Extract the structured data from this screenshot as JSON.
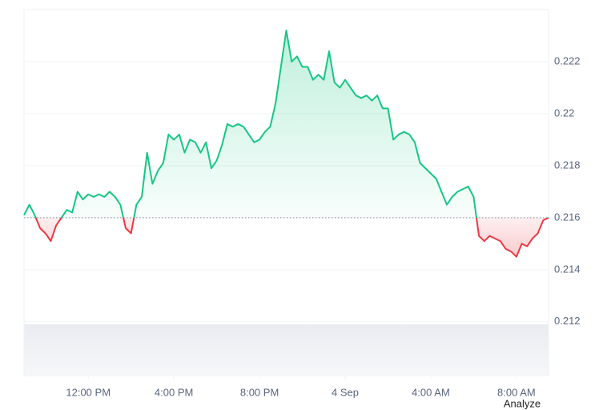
{
  "chart_data": {
    "type": "line",
    "x": [
      -3,
      -2.75,
      -2.5,
      -2.25,
      -2,
      -1.75,
      -1.5,
      -1.25,
      -1,
      -0.75,
      -0.5,
      -0.25,
      0,
      0.25,
      0.5,
      0.75,
      1,
      1.25,
      1.5,
      1.75,
      2,
      2.25,
      2.5,
      2.75,
      3,
      3.25,
      3.5,
      3.75,
      4,
      4.25,
      4.5,
      4.75,
      5,
      5.25,
      5.5,
      5.75,
      6,
      6.25,
      6.5,
      6.75,
      7,
      7.25,
      7.5,
      7.75,
      8,
      8.25,
      8.5,
      8.75,
      9,
      9.25,
      9.5,
      9.75,
      10,
      10.25,
      10.5,
      10.75,
      11,
      11.25,
      11.5,
      11.75,
      12,
      12.25,
      12.5,
      12.75,
      13,
      13.25,
      13.5,
      13.75,
      14,
      14.25,
      14.5,
      14.75,
      15,
      15.25,
      15.5,
      15.75,
      16,
      16.25,
      16.5,
      16.75,
      17,
      17.25,
      17.5,
      17.75,
      18,
      18.25,
      18.5,
      18.75,
      19,
      19.25,
      19.5,
      19.75,
      20,
      20.25,
      20.5,
      20.75,
      21,
      21.25,
      21.5
    ],
    "values": [
      0.2161,
      0.2165,
      0.2161,
      0.2156,
      0.2154,
      0.2151,
      0.2157,
      0.216,
      0.2163,
      0.2162,
      0.217,
      0.2167,
      0.2169,
      0.2168,
      0.2169,
      0.2168,
      0.217,
      0.2168,
      0.2165,
      0.2156,
      0.2154,
      0.2165,
      0.2168,
      0.2185,
      0.2173,
      0.2178,
      0.2181,
      0.2192,
      0.219,
      0.2192,
      0.2185,
      0.219,
      0.2189,
      0.2185,
      0.2189,
      0.2179,
      0.2182,
      0.2188,
      0.2196,
      0.2195,
      0.2196,
      0.2195,
      0.2192,
      0.2189,
      0.219,
      0.2193,
      0.2195,
      0.2204,
      0.2218,
      0.2232,
      0.222,
      0.2222,
      0.2218,
      0.2218,
      0.2213,
      0.2215,
      0.2213,
      0.2224,
      0.2212,
      0.221,
      0.2213,
      0.221,
      0.2207,
      0.2206,
      0.2207,
      0.2205,
      0.2207,
      0.2202,
      0.2202,
      0.219,
      0.2192,
      0.2193,
      0.2192,
      0.2189,
      0.2181,
      0.2179,
      0.2177,
      0.2175,
      0.217,
      0.2165,
      0.2168,
      0.217,
      0.2171,
      0.2172,
      0.2168,
      0.2153,
      0.2151,
      0.2153,
      0.2152,
      0.2151,
      0.2148,
      0.2147,
      0.2145,
      0.215,
      0.2149,
      0.2152,
      0.2154,
      0.2159,
      0.216
    ],
    "baseline": 0.216,
    "up_color": "#16c784",
    "down_color": "#ea3943",
    "xlim": [
      -3,
      21.5
    ],
    "xticks": [
      {
        "value": 0,
        "label": "12:00 PM"
      },
      {
        "value": 4,
        "label": "4:00 PM"
      },
      {
        "value": 8,
        "label": "8:00 PM"
      },
      {
        "value": 12,
        "label": "4 Sep"
      },
      {
        "value": 16,
        "label": "4:00 AM"
      },
      {
        "value": 20,
        "label": "8:00 AM"
      }
    ],
    "ylim": [
      0.2099,
      0.224
    ],
    "yticks": [
      0.212,
      0.214,
      0.216,
      0.218,
      0.22,
      0.222
    ],
    "grid": true
  },
  "analyze_button": "Analyze"
}
